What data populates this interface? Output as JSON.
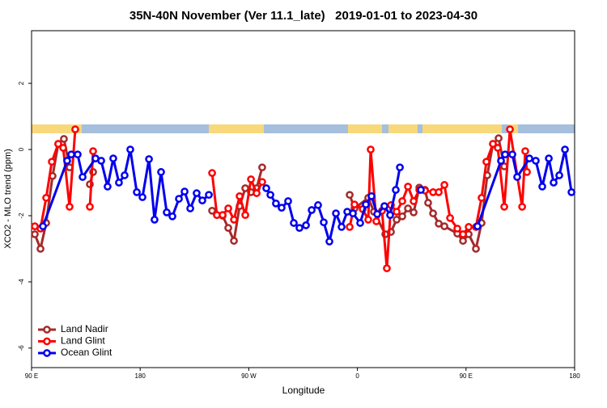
{
  "chart_data": {
    "type": "line",
    "title": "35N-40N November (Ver 11.1_late)   2019-01-01 to 2023-04-30",
    "x_label": "Longitude",
    "y_label": "XCO2 - MLO trend (ppm)",
    "xlim": [
      90,
      540
    ],
    "xticks": [
      {
        "value": 90,
        "label": "90 E"
      },
      180,
      {
        "value": 270,
        "label": "90 W"
      },
      {
        "value": 360,
        "label": "0"
      },
      {
        "value": 450,
        "label": "90 E"
      },
      {
        "value": 540,
        "label": "180"
      }
    ],
    "ylim": [
      -6.59,
      3.59
    ],
    "yticks": [
      -6,
      -4,
      -2,
      0,
      2
    ],
    "legend": "bottomleft",
    "series": [
      {
        "name": "Land Nadir",
        "color": "#a52a2a",
        "x": [
          92.7,
          97.4,
          102.1,
          107.4,
          112.1,
          116.8,
          121.5,
          null,
          138.3,
          141,
          null,
          239.6,
          243.6,
          248.3,
          253,
          257.7,
          262.4,
          267.1,
          271.8,
          276.5,
          281.1,
          null,
          353.6,
          357.6,
          369,
          373.7,
          383.1,
          387.8,
          392.5,
          397.2,
          401.9,
          406.6,
          411.3,
          416,
          418.6,
          422.7,
          427.4,
          432.1,
          442.8,
          447.5,
          452.2,
          458.2,
          462.9,
          467.6,
          472.3,
          477,
          481.7
        ],
        "values": [
          -2.56,
          -3.0,
          -2.22,
          -0.8,
          0.17,
          0.32,
          -0.54,
          null,
          -1.05,
          -0.68,
          null,
          -1.85,
          -1.98,
          -2.0,
          -2.37,
          -2.76,
          -1.71,
          -1.17,
          -1.29,
          -1.17,
          -0.54,
          null,
          -1.37,
          -1.78,
          -1.46,
          -1.88,
          -2.56,
          -2.49,
          -2.12,
          -2.02,
          -1.78,
          -1.9,
          -1.15,
          -1.22,
          -1.61,
          -1.93,
          -2.24,
          -2.32,
          -2.54,
          -2.76,
          -2.56,
          -3.0,
          -2.22,
          -0.78,
          0.17,
          0.34,
          -0.51
        ]
      },
      {
        "name": "Land Glint",
        "color": "#ff0000",
        "x": [
          92.7,
          97.4,
          102.1,
          106.8,
          112.1,
          116.2,
          121.5,
          126.2,
          null,
          138.3,
          141,
          null,
          239.6,
          243.6,
          248.3,
          253,
          257.7,
          262.4,
          267.1,
          271.8,
          276.5,
          281.1,
          null,
          353.6,
          357.6,
          364.4,
          369,
          371,
          375.7,
          380.4,
          384.4,
          387.8,
          392.5,
          397.2,
          401.9,
          406.6,
          411.3,
          416,
          422.7,
          427.4,
          432.1,
          436.8,
          442.8,
          447.5,
          452.2,
          458.2,
          462.9,
          466.9,
          472.3,
          476.3,
          481.7,
          486.4,
          496.5,
          499.1,
          500.5
        ],
        "values": [
          -2.32,
          -2.39,
          -1.46,
          -0.37,
          0.17,
          0.05,
          -1.73,
          0.61,
          null,
          -1.73,
          -0.05,
          null,
          -0.71,
          -1.98,
          -1.98,
          -1.78,
          -2.12,
          -1.41,
          -1.98,
          -0.9,
          -1.32,
          -0.98,
          null,
          -2.34,
          -1.66,
          -1.8,
          -2.12,
          0.0,
          -2.17,
          -1.85,
          -3.59,
          -1.68,
          -1.88,
          -1.56,
          -1.12,
          -1.56,
          -1.22,
          -1.24,
          -1.29,
          -1.29,
          -1.07,
          -2.07,
          -2.39,
          -2.56,
          -2.34,
          -2.34,
          -1.46,
          -0.37,
          0.17,
          0.05,
          -1.73,
          0.61,
          -1.73,
          -0.05,
          -0.68
        ]
      },
      {
        "name": "Ocean Glint",
        "color": "#0000ee",
        "x": [
          99.4,
          119.5,
          122.9,
          128.2,
          132.3,
          143,
          147.7,
          153,
          157.7,
          162.4,
          167.1,
          171.8,
          177.2,
          181.9,
          187.3,
          191.9,
          197.3,
          202,
          206.7,
          212.1,
          216.8,
          221.5,
          226.8,
          231.5,
          236.9,
          null,
          284.5,
          287.9,
          292.5,
          297.2,
          302.6,
          307.3,
          312,
          317.4,
          322.1,
          327.4,
          332.1,
          336.8,
          342.2,
          346.9,
          351.6,
          356.3,
          362.3,
          367,
          371.7,
          376.4,
          382.4,
          387.1,
          391.8,
          395.2,
          null,
          412.6,
          null,
          459.5,
          479,
          482.4,
          488.4,
          492.4,
          502.5,
          507.8,
          513.2,
          518.6,
          522.6,
          527.3,
          532,
          537.4
        ],
        "values": [
          -2.32,
          -0.34,
          -0.15,
          -0.15,
          -0.83,
          -0.27,
          -0.34,
          -1.12,
          -0.27,
          -1.0,
          -0.78,
          0.0,
          -1.29,
          -1.44,
          -0.29,
          -2.12,
          -0.68,
          -1.9,
          -2.02,
          -1.49,
          -1.27,
          -1.78,
          -1.32,
          -1.54,
          -1.37,
          null,
          -1.17,
          -1.37,
          -1.63,
          -1.76,
          -1.56,
          -2.22,
          -2.37,
          -2.29,
          -1.83,
          -1.68,
          -2.2,
          -2.78,
          -1.93,
          -2.34,
          -1.88,
          -1.93,
          -2.22,
          -1.66,
          -1.41,
          -1.95,
          -1.71,
          -1.98,
          -1.22,
          -0.54,
          null,
          -1.22,
          null,
          -2.32,
          -0.34,
          -0.15,
          -0.15,
          -0.83,
          -0.27,
          -0.34,
          -1.12,
          -0.27,
          -1.0,
          -0.78,
          0.0,
          -1.29
        ]
      }
    ]
  }
}
